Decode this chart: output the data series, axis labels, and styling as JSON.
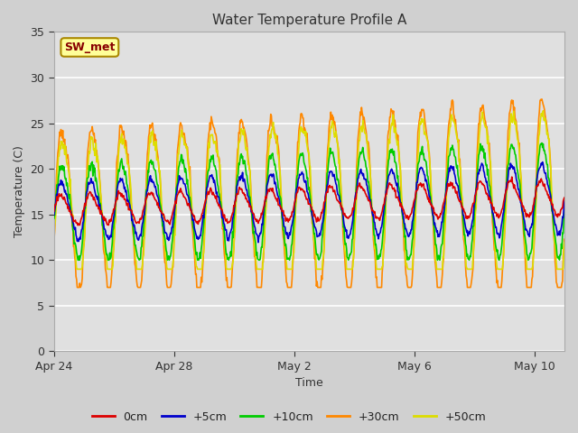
{
  "title": "Water Temperature Profile A",
  "xlabel": "Time",
  "ylabel": "Temperature (C)",
  "ylim": [
    0,
    35
  ],
  "yticks": [
    0,
    5,
    10,
    15,
    20,
    25,
    30,
    35
  ],
  "fig_bg_color": "#d0d0d0",
  "plot_bg_color": "#e0e0e0",
  "series_colors": {
    "0cm": "#dd0000",
    "+5cm": "#0000cc",
    "+10cm": "#00cc00",
    "+30cm": "#ff8800",
    "+50cm": "#dddd00"
  },
  "legend_label_color": "#222222",
  "sw_met_bg": "#ffff99",
  "sw_met_border": "#aa8800",
  "sw_met_text": "#880000",
  "x_tick_labels": [
    "Apr 24",
    "Apr 28",
    "May 2",
    "May 6",
    "May 10"
  ],
  "x_tick_positions": [
    0,
    4,
    8,
    12,
    16
  ]
}
